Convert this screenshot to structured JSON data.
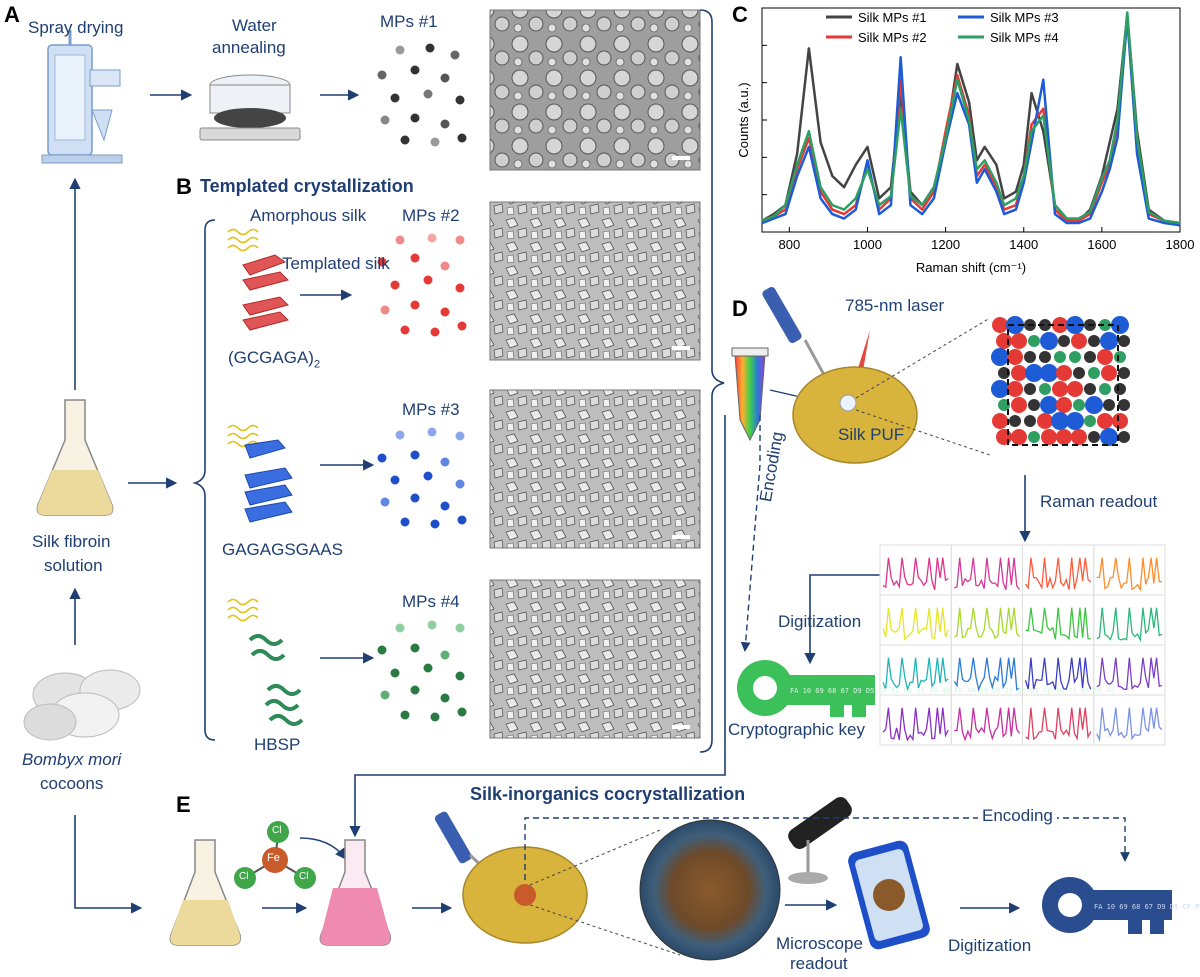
{
  "panels": {
    "a": "A",
    "b": "B",
    "c": "C",
    "d": "D",
    "e": "E"
  },
  "panel_a": {
    "spray_drying": "Spray drying",
    "water_annealing_line1": "Water",
    "water_annealing_line2": "annealing",
    "mps1": "MPs #1"
  },
  "panel_b": {
    "title": "Templated crystallization",
    "amorphous": "Amorphous silk",
    "templated": "Templated silk",
    "mps2": "MPs #2",
    "mps3": "MPs #3",
    "mps4": "MPs #4",
    "peptide1": "(GCGAGA)",
    "peptide1_sub": "2",
    "peptide2": "GAGAGSGAAS",
    "peptide3": "HBSP"
  },
  "left_column": {
    "silk_fibroin_line1": "Silk fibroin",
    "silk_fibroin_line2": "solution",
    "bombyx": "Bombyx mori",
    "cocoons": "cocoons"
  },
  "panel_d": {
    "laser": "785-nm laser",
    "silk_puf": "Silk PUF",
    "raman_readout": "Raman readout",
    "encoding": "Encoding",
    "digitization": "Digitization",
    "crypto_key": "Cryptographic key"
  },
  "panel_e": {
    "title": "Silk-inorganics cocrystallization",
    "encoding": "Encoding",
    "microscope_line1": "Microscope",
    "microscope_line2": "readout",
    "digitization": "Digitization",
    "fe": "Fe",
    "cl": "Cl"
  },
  "key_hex": "FA 10 69 68 67 D9 D5 CF F2 6B 55 49 40 FD 48 35 B8 16 6E D5 AE 36 71 85 65 4C",
  "colors": {
    "navy": "#1f3f73",
    "mps1": "#333333",
    "mps2": "#e53935",
    "mps3": "#1e5bd6",
    "mps4": "#2e8b57",
    "puf": "#d9b43c"
  },
  "chart_data": {
    "type": "line",
    "title": "",
    "xlabel": "Raman shift (cm⁻¹)",
    "ylabel": "Counts (a.u.)",
    "xlim": [
      730,
      1800
    ],
    "ylim": [
      0,
      1.0
    ],
    "xticks": [
      800,
      1000,
      1200,
      1400,
      1600,
      1800
    ],
    "legend_position": "top",
    "x": [
      730,
      760,
      790,
      820,
      850,
      880,
      910,
      940,
      970,
      1000,
      1030,
      1060,
      1085,
      1110,
      1140,
      1170,
      1200,
      1230,
      1260,
      1280,
      1300,
      1330,
      1350,
      1380,
      1400,
      1420,
      1450,
      1480,
      1510,
      1540,
      1570,
      1600,
      1620,
      1640,
      1665,
      1690,
      1720,
      1760,
      1800
    ],
    "series": [
      {
        "name": "Silk MPs #1",
        "color": "#444444",
        "values": [
          0.05,
          0.08,
          0.12,
          0.35,
          0.82,
          0.4,
          0.25,
          0.2,
          0.3,
          0.38,
          0.15,
          0.2,
          0.62,
          0.18,
          0.12,
          0.2,
          0.4,
          0.75,
          0.58,
          0.32,
          0.38,
          0.3,
          0.15,
          0.18,
          0.3,
          0.62,
          0.45,
          0.12,
          0.06,
          0.05,
          0.1,
          0.25,
          0.4,
          0.55,
          0.97,
          0.45,
          0.1,
          0.05,
          0.04
        ]
      },
      {
        "name": "Silk MPs #2",
        "color": "#e53935",
        "values": [
          0.05,
          0.07,
          0.1,
          0.28,
          0.42,
          0.18,
          0.1,
          0.08,
          0.12,
          0.3,
          0.1,
          0.15,
          0.68,
          0.15,
          0.1,
          0.18,
          0.45,
          0.7,
          0.52,
          0.25,
          0.3,
          0.2,
          0.1,
          0.12,
          0.25,
          0.48,
          0.55,
          0.1,
          0.05,
          0.05,
          0.08,
          0.22,
          0.3,
          0.48,
          0.95,
          0.4,
          0.08,
          0.05,
          0.04
        ]
      },
      {
        "name": "Silk MPs #3",
        "color": "#1e5bd6",
        "values": [
          0.04,
          0.06,
          0.08,
          0.25,
          0.38,
          0.15,
          0.08,
          0.06,
          0.1,
          0.32,
          0.08,
          0.12,
          0.78,
          0.12,
          0.08,
          0.15,
          0.4,
          0.62,
          0.48,
          0.22,
          0.28,
          0.18,
          0.08,
          0.1,
          0.22,
          0.4,
          0.68,
          0.08,
          0.04,
          0.04,
          0.06,
          0.18,
          0.28,
          0.42,
          0.96,
          0.35,
          0.06,
          0.04,
          0.03
        ]
      },
      {
        "name": "Silk MPs #4",
        "color": "#2e9e63",
        "values": [
          0.05,
          0.07,
          0.12,
          0.3,
          0.45,
          0.2,
          0.12,
          0.1,
          0.15,
          0.28,
          0.12,
          0.16,
          0.55,
          0.16,
          0.12,
          0.2,
          0.42,
          0.68,
          0.5,
          0.28,
          0.32,
          0.22,
          0.12,
          0.15,
          0.25,
          0.45,
          0.52,
          0.12,
          0.06,
          0.06,
          0.09,
          0.24,
          0.32,
          0.5,
          0.98,
          0.42,
          0.09,
          0.05,
          0.04
        ]
      }
    ]
  },
  "readout_grid": {
    "rows": 4,
    "cols": 4,
    "colors": [
      "#e0348c",
      "#d23b9a",
      "#ff5a3c",
      "#ff8c2a",
      "#e5e52a",
      "#a8d830",
      "#3cc640",
      "#2cb87a",
      "#20b5b5",
      "#2b7ad6",
      "#3b3fc6",
      "#7b3fc6",
      "#8c2fc6",
      "#c62fa0",
      "#e04060",
      "#7c92e8"
    ]
  }
}
